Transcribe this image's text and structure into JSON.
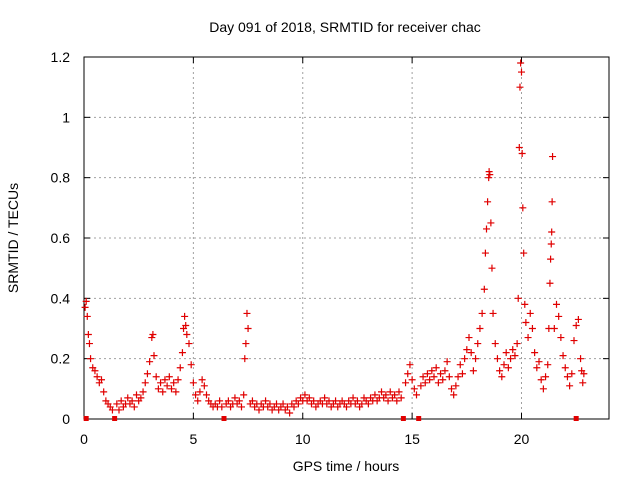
{
  "chart_data": {
    "type": "scatter",
    "title": "Day 091 of 2018, SRMTID for receiver chac",
    "xlabel": "GPS time / hours",
    "ylabel": "SRMTID / TECUs",
    "xlim": [
      0,
      24
    ],
    "ylim": [
      0,
      1.2
    ],
    "x_ticks": [
      0,
      5,
      10,
      15,
      20
    ],
    "x_tick_labels": [
      "0",
      "5",
      "10",
      "15",
      "20"
    ],
    "y_ticks": [
      0,
      0.2,
      0.4,
      0.6,
      0.8,
      1.0,
      1.2
    ],
    "y_tick_labels": [
      "0",
      "0.2",
      "0.4",
      "0.6",
      "0.8",
      "1",
      "1.2"
    ],
    "grid": true,
    "marker": "+",
    "color": "#e00000",
    "gap_markers_x": [
      0.1,
      1.4,
      6.4,
      14.6,
      15.3,
      22.5
    ],
    "series": [
      {
        "name": "SRMTID",
        "points": [
          [
            0.05,
            0.37
          ],
          [
            0.1,
            0.39
          ],
          [
            0.15,
            0.34
          ],
          [
            0.2,
            0.28
          ],
          [
            0.25,
            0.25
          ],
          [
            0.3,
            0.2
          ],
          [
            0.4,
            0.17
          ],
          [
            0.5,
            0.16
          ],
          [
            0.6,
            0.14
          ],
          [
            0.7,
            0.12
          ],
          [
            0.8,
            0.13
          ],
          [
            0.9,
            0.09
          ],
          [
            1.0,
            0.06
          ],
          [
            1.1,
            0.05
          ],
          [
            1.2,
            0.04
          ],
          [
            1.3,
            0.03
          ],
          [
            1.5,
            0.05
          ],
          [
            1.6,
            0.03
          ],
          [
            1.7,
            0.06
          ],
          [
            1.8,
            0.04
          ],
          [
            1.9,
            0.05
          ],
          [
            2.0,
            0.07
          ],
          [
            2.1,
            0.05
          ],
          [
            2.2,
            0.06
          ],
          [
            2.3,
            0.04
          ],
          [
            2.4,
            0.08
          ],
          [
            2.5,
            0.06
          ],
          [
            2.6,
            0.07
          ],
          [
            2.7,
            0.09
          ],
          [
            2.8,
            0.12
          ],
          [
            2.9,
            0.15
          ],
          [
            3.0,
            0.19
          ],
          [
            3.1,
            0.27
          ],
          [
            3.15,
            0.28
          ],
          [
            3.2,
            0.21
          ],
          [
            3.3,
            0.14
          ],
          [
            3.4,
            0.1
          ],
          [
            3.5,
            0.12
          ],
          [
            3.6,
            0.09
          ],
          [
            3.7,
            0.13
          ],
          [
            3.8,
            0.11
          ],
          [
            3.9,
            0.14
          ],
          [
            4.0,
            0.1
          ],
          [
            4.1,
            0.12
          ],
          [
            4.2,
            0.09
          ],
          [
            4.3,
            0.13
          ],
          [
            4.4,
            0.17
          ],
          [
            4.5,
            0.22
          ],
          [
            4.55,
            0.3
          ],
          [
            4.6,
            0.34
          ],
          [
            4.65,
            0.31
          ],
          [
            4.7,
            0.28
          ],
          [
            4.8,
            0.25
          ],
          [
            4.9,
            0.18
          ],
          [
            5.0,
            0.12
          ],
          [
            5.1,
            0.08
          ],
          [
            5.2,
            0.06
          ],
          [
            5.3,
            0.09
          ],
          [
            5.4,
            0.13
          ],
          [
            5.5,
            0.11
          ],
          [
            5.6,
            0.08
          ],
          [
            5.7,
            0.06
          ],
          [
            5.8,
            0.05
          ],
          [
            5.9,
            0.04
          ],
          [
            6.0,
            0.05
          ],
          [
            6.1,
            0.04
          ],
          [
            6.2,
            0.06
          ],
          [
            6.3,
            0.04
          ],
          [
            6.5,
            0.05
          ],
          [
            6.6,
            0.06
          ],
          [
            6.7,
            0.04
          ],
          [
            6.8,
            0.05
          ],
          [
            6.9,
            0.07
          ],
          [
            7.0,
            0.05
          ],
          [
            7.1,
            0.06
          ],
          [
            7.2,
            0.04
          ],
          [
            7.3,
            0.08
          ],
          [
            7.35,
            0.2
          ],
          [
            7.4,
            0.25
          ],
          [
            7.45,
            0.35
          ],
          [
            7.5,
            0.3
          ],
          [
            7.6,
            0.05
          ],
          [
            7.7,
            0.06
          ],
          [
            7.8,
            0.04
          ],
          [
            7.9,
            0.05
          ],
          [
            8.0,
            0.03
          ],
          [
            8.1,
            0.05
          ],
          [
            8.2,
            0.04
          ],
          [
            8.3,
            0.06
          ],
          [
            8.4,
            0.04
          ],
          [
            8.5,
            0.05
          ],
          [
            8.6,
            0.03
          ],
          [
            8.7,
            0.04
          ],
          [
            8.8,
            0.05
          ],
          [
            8.9,
            0.03
          ],
          [
            9.0,
            0.04
          ],
          [
            9.1,
            0.05
          ],
          [
            9.2,
            0.03
          ],
          [
            9.3,
            0.04
          ],
          [
            9.4,
            0.02
          ],
          [
            9.5,
            0.05
          ],
          [
            9.6,
            0.04
          ],
          [
            9.7,
            0.06
          ],
          [
            9.8,
            0.05
          ],
          [
            9.9,
            0.07
          ],
          [
            10.0,
            0.06
          ],
          [
            10.1,
            0.08
          ],
          [
            10.2,
            0.06
          ],
          [
            10.3,
            0.07
          ],
          [
            10.4,
            0.05
          ],
          [
            10.5,
            0.06
          ],
          [
            10.6,
            0.04
          ],
          [
            10.7,
            0.05
          ],
          [
            10.8,
            0.06
          ],
          [
            10.9,
            0.05
          ],
          [
            11.0,
            0.07
          ],
          [
            11.1,
            0.05
          ],
          [
            11.2,
            0.06
          ],
          [
            11.3,
            0.04
          ],
          [
            11.4,
            0.05
          ],
          [
            11.5,
            0.06
          ],
          [
            11.6,
            0.04
          ],
          [
            11.7,
            0.05
          ],
          [
            11.8,
            0.06
          ],
          [
            11.9,
            0.05
          ],
          [
            12.0,
            0.04
          ],
          [
            12.1,
            0.06
          ],
          [
            12.2,
            0.05
          ],
          [
            12.3,
            0.07
          ],
          [
            12.4,
            0.05
          ],
          [
            12.5,
            0.06
          ],
          [
            12.6,
            0.04
          ],
          [
            12.7,
            0.05
          ],
          [
            12.8,
            0.07
          ],
          [
            12.9,
            0.06
          ],
          [
            13.0,
            0.05
          ],
          [
            13.1,
            0.07
          ],
          [
            13.2,
            0.06
          ],
          [
            13.3,
            0.08
          ],
          [
            13.4,
            0.06
          ],
          [
            13.5,
            0.07
          ],
          [
            13.6,
            0.09
          ],
          [
            13.7,
            0.07
          ],
          [
            13.8,
            0.08
          ],
          [
            13.9,
            0.06
          ],
          [
            14.0,
            0.09
          ],
          [
            14.1,
            0.07
          ],
          [
            14.2,
            0.08
          ],
          [
            14.3,
            0.06
          ],
          [
            14.4,
            0.09
          ],
          [
            14.5,
            0.07
          ],
          [
            14.7,
            0.12
          ],
          [
            14.8,
            0.15
          ],
          [
            14.9,
            0.18
          ],
          [
            15.0,
            0.13
          ],
          [
            15.1,
            0.1
          ],
          [
            15.2,
            0.08
          ],
          [
            15.4,
            0.11
          ],
          [
            15.5,
            0.14
          ],
          [
            15.6,
            0.12
          ],
          [
            15.7,
            0.15
          ],
          [
            15.8,
            0.13
          ],
          [
            15.9,
            0.16
          ],
          [
            16.0,
            0.14
          ],
          [
            16.1,
            0.17
          ],
          [
            16.2,
            0.12
          ],
          [
            16.3,
            0.15
          ],
          [
            16.4,
            0.13
          ],
          [
            16.5,
            0.16
          ],
          [
            16.6,
            0.19
          ],
          [
            16.7,
            0.14
          ],
          [
            16.8,
            0.1
          ],
          [
            16.9,
            0.08
          ],
          [
            17.0,
            0.11
          ],
          [
            17.1,
            0.14
          ],
          [
            17.2,
            0.18
          ],
          [
            17.3,
            0.15
          ],
          [
            17.4,
            0.2
          ],
          [
            17.5,
            0.23
          ],
          [
            17.6,
            0.27
          ],
          [
            17.7,
            0.22
          ],
          [
            17.8,
            0.16
          ],
          [
            17.9,
            0.2
          ],
          [
            18.0,
            0.25
          ],
          [
            18.1,
            0.3
          ],
          [
            18.2,
            0.35
          ],
          [
            18.3,
            0.43
          ],
          [
            18.35,
            0.55
          ],
          [
            18.4,
            0.63
          ],
          [
            18.45,
            0.72
          ],
          [
            18.5,
            0.8
          ],
          [
            18.52,
            0.82
          ],
          [
            18.55,
            0.81
          ],
          [
            18.6,
            0.65
          ],
          [
            18.65,
            0.5
          ],
          [
            18.7,
            0.35
          ],
          [
            18.8,
            0.25
          ],
          [
            18.9,
            0.2
          ],
          [
            19.0,
            0.16
          ],
          [
            19.1,
            0.14
          ],
          [
            19.2,
            0.18
          ],
          [
            19.3,
            0.22
          ],
          [
            19.4,
            0.17
          ],
          [
            19.5,
            0.2
          ],
          [
            19.6,
            0.23
          ],
          [
            19.7,
            0.21
          ],
          [
            19.8,
            0.25
          ],
          [
            19.85,
            0.4
          ],
          [
            19.9,
            0.9
          ],
          [
            19.93,
            1.1
          ],
          [
            19.96,
            1.18
          ],
          [
            20.0,
            1.15
          ],
          [
            20.03,
            0.88
          ],
          [
            20.06,
            0.7
          ],
          [
            20.1,
            0.55
          ],
          [
            20.15,
            0.38
          ],
          [
            20.2,
            0.32
          ],
          [
            20.3,
            0.27
          ],
          [
            20.4,
            0.35
          ],
          [
            20.5,
            0.3
          ],
          [
            20.6,
            0.22
          ],
          [
            20.7,
            0.17
          ],
          [
            20.8,
            0.19
          ],
          [
            20.9,
            0.13
          ],
          [
            21.0,
            0.1
          ],
          [
            21.1,
            0.14
          ],
          [
            21.2,
            0.18
          ],
          [
            21.25,
            0.3
          ],
          [
            21.3,
            0.45
          ],
          [
            21.33,
            0.53
          ],
          [
            21.36,
            0.58
          ],
          [
            21.38,
            0.62
          ],
          [
            21.4,
            0.72
          ],
          [
            21.42,
            0.87
          ],
          [
            21.5,
            0.3
          ],
          [
            21.6,
            0.38
          ],
          [
            21.7,
            0.34
          ],
          [
            21.8,
            0.27
          ],
          [
            21.9,
            0.21
          ],
          [
            22.0,
            0.17
          ],
          [
            22.1,
            0.14
          ],
          [
            22.2,
            0.11
          ],
          [
            22.3,
            0.15
          ],
          [
            22.4,
            0.26
          ],
          [
            22.5,
            0.31
          ],
          [
            22.6,
            0.33
          ],
          [
            22.7,
            0.2
          ],
          [
            22.75,
            0.16
          ],
          [
            22.8,
            0.12
          ],
          [
            22.85,
            0.15
          ]
        ]
      }
    ]
  }
}
